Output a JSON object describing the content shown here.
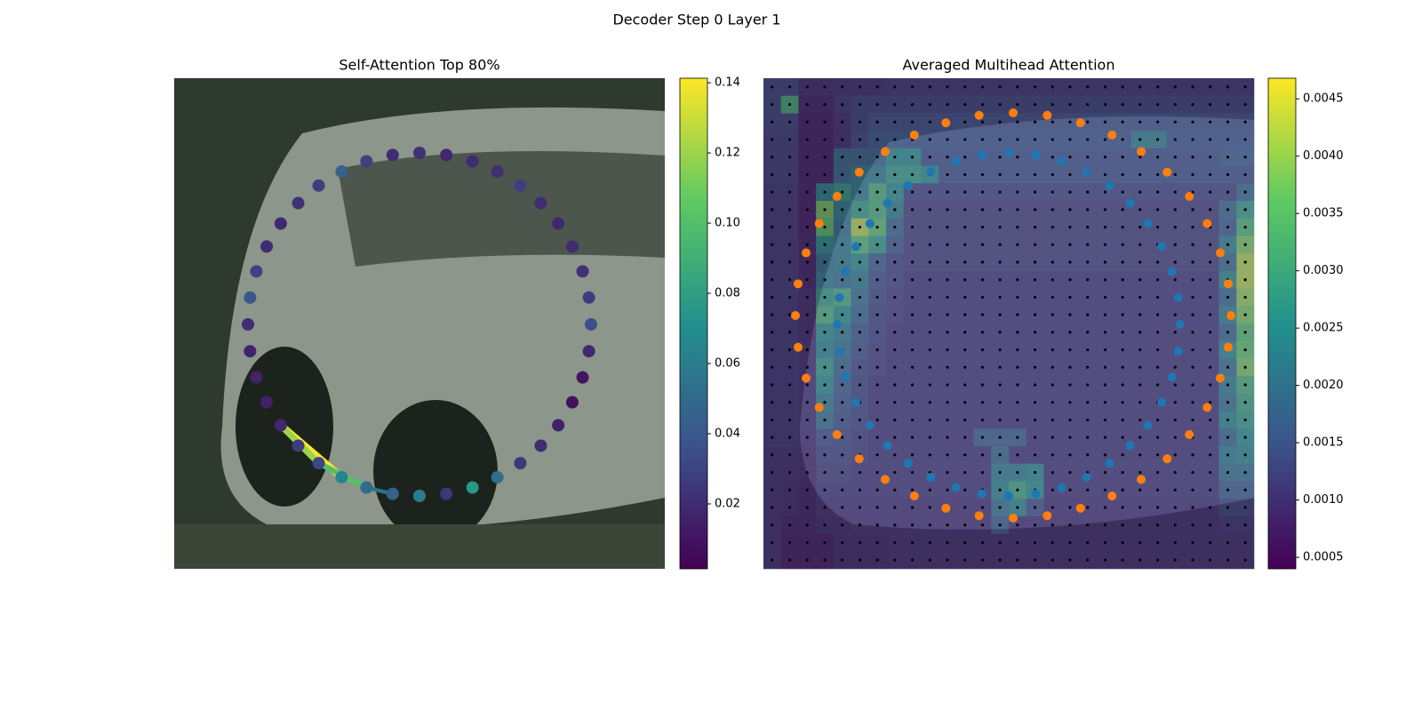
{
  "title": "Decoder Step 0 Layer 1",
  "chart_data": [
    {
      "type": "scatter",
      "title": "Self-Attention Top 80%",
      "cmap": "viridis",
      "values": [
        0.018,
        0.015,
        0.016,
        0.017,
        0.02,
        0.04,
        0.03,
        0.02,
        0.018,
        0.022,
        0.028,
        0.045,
        0.03,
        0.02,
        0.022,
        0.018,
        0.02,
        0.022,
        0.028,
        0.02,
        0.018,
        0.02,
        0.022,
        0.028,
        0.035,
        0.018,
        0.01,
        0.008,
        0.015,
        0.02,
        0.025,
        0.052,
        0.075,
        0.025,
        0.06,
        0.045,
        0.05,
        0.065,
        0.032,
        0.028
      ],
      "links": [
        {
          "from": 0,
          "to": 37,
          "value": 0.141
        },
        {
          "from": 0,
          "to": 38,
          "value": 0.12
        },
        {
          "from": 38,
          "to": 36,
          "value": 0.1
        },
        {
          "from": 36,
          "to": 35,
          "value": 0.055
        }
      ],
      "colorbar": {
        "ylim": [
          0.0015,
          0.1413
        ],
        "yticks": [
          0.02,
          0.04,
          0.06,
          0.08,
          {
            "value": 0.1,
            "label": "0.10"
          },
          0.12,
          0.14
        ]
      }
    },
    {
      "type": "heatmap",
      "title": "Averaged Multihead Attention",
      "cmap": "viridis",
      "z": [
        [
          0.0012,
          0.0012,
          0.0008,
          0.0008,
          0.0009,
          0.0009,
          0.0009,
          0.001,
          0.001,
          0.001,
          0.001,
          0.001,
          0.001,
          0.001,
          0.001,
          0.001,
          0.001,
          0.001,
          0.001,
          0.001,
          0.001,
          0.001,
          0.001,
          0.001,
          0.001,
          0.001,
          0.001,
          0.001
        ],
        [
          0.0012,
          0.0032,
          0.0007,
          0.0007,
          0.001,
          0.0012,
          0.0012,
          0.0012,
          0.0012,
          0.0012,
          0.0012,
          0.0012,
          0.0012,
          0.0012,
          0.0012,
          0.0012,
          0.0012,
          0.0012,
          0.0012,
          0.0012,
          0.0012,
          0.0012,
          0.0012,
          0.0012,
          0.0012,
          0.0012,
          0.0012,
          0.0012
        ],
        [
          0.0012,
          0.0012,
          0.0006,
          0.0006,
          0.0009,
          0.0012,
          0.0014,
          0.0014,
          0.0014,
          0.0014,
          0.0014,
          0.0014,
          0.0014,
          0.0014,
          0.0014,
          0.0014,
          0.0014,
          0.0014,
          0.0014,
          0.0014,
          0.0014,
          0.0014,
          0.0014,
          0.0014,
          0.0014,
          0.0014,
          0.0014,
          0.0014
        ],
        [
          0.0011,
          0.0011,
          0.0006,
          0.0006,
          0.0009,
          0.0013,
          0.0016,
          0.0016,
          0.0015,
          0.0015,
          0.0015,
          0.0015,
          0.0015,
          0.0015,
          0.0015,
          0.0015,
          0.0015,
          0.0015,
          0.0015,
          0.0015,
          0.0015,
          0.0022,
          0.0022,
          0.0015,
          0.0015,
          0.0015,
          0.0015,
          0.0015
        ],
        [
          0.0011,
          0.0011,
          0.0006,
          0.0006,
          0.0018,
          0.0018,
          0.0018,
          0.0025,
          0.0025,
          0.0014,
          0.0014,
          0.0014,
          0.0014,
          0.0014,
          0.0014,
          0.0014,
          0.0014,
          0.0014,
          0.0014,
          0.0014,
          0.0014,
          0.0014,
          0.0014,
          0.0014,
          0.0014,
          0.0014,
          0.0016,
          0.0016
        ],
        [
          0.0011,
          0.0011,
          0.0006,
          0.0006,
          0.0018,
          0.0022,
          0.0022,
          0.0028,
          0.0028,
          0.0025,
          0.0014,
          0.0014,
          0.0014,
          0.0014,
          0.0014,
          0.0014,
          0.0014,
          0.0014,
          0.0014,
          0.0014,
          0.0014,
          0.0014,
          0.0014,
          0.0014,
          0.0014,
          0.0014,
          0.0014,
          0.0014
        ],
        [
          0.001,
          0.001,
          0.0006,
          0.0024,
          0.0028,
          0.0022,
          0.0032,
          0.0026,
          0.0012,
          0.0012,
          0.0012,
          0.0012,
          0.0012,
          0.0012,
          0.0012,
          0.0012,
          0.0012,
          0.0012,
          0.0012,
          0.0012,
          0.0012,
          0.0012,
          0.0012,
          0.0012,
          0.0012,
          0.0012,
          0.0012,
          0.0018
        ],
        [
          0.001,
          0.001,
          0.0006,
          0.0038,
          0.0022,
          0.0028,
          0.0032,
          0.0022,
          0.0011,
          0.0011,
          0.0011,
          0.0011,
          0.0011,
          0.0011,
          0.0011,
          0.0011,
          0.0011,
          0.0011,
          0.0011,
          0.0011,
          0.0011,
          0.0011,
          0.0011,
          0.0011,
          0.0011,
          0.0011,
          0.0018,
          0.0028
        ],
        [
          0.001,
          0.001,
          0.0006,
          0.0036,
          0.002,
          0.0042,
          0.0035,
          0.0018,
          0.0011,
          0.0011,
          0.0011,
          0.0011,
          0.0011,
          0.0011,
          0.0011,
          0.0011,
          0.0011,
          0.0011,
          0.0011,
          0.0011,
          0.0011,
          0.0011,
          0.0011,
          0.0011,
          0.0011,
          0.0011,
          0.0016,
          0.0033
        ],
        [
          0.001,
          0.001,
          0.0007,
          0.0026,
          0.0022,
          0.0034,
          0.0028,
          0.0015,
          0.0011,
          0.0011,
          0.0011,
          0.0011,
          0.0011,
          0.0011,
          0.0011,
          0.0011,
          0.0011,
          0.0011,
          0.0011,
          0.0011,
          0.0011,
          0.0011,
          0.0011,
          0.0011,
          0.0011,
          0.0011,
          0.0022,
          0.0038
        ],
        [
          0.001,
          0.001,
          0.0007,
          0.002,
          0.0022,
          0.0026,
          0.0016,
          0.0012,
          0.0011,
          0.0011,
          0.0011,
          0.0011,
          0.0011,
          0.0011,
          0.0011,
          0.0011,
          0.0011,
          0.0011,
          0.0011,
          0.0011,
          0.0011,
          0.0011,
          0.0011,
          0.0011,
          0.0011,
          0.0011,
          0.0018,
          0.0042
        ],
        [
          0.001,
          0.001,
          0.0007,
          0.0022,
          0.002,
          0.0022,
          0.0014,
          0.0012,
          0.001,
          0.001,
          0.001,
          0.001,
          0.001,
          0.001,
          0.001,
          0.001,
          0.001,
          0.001,
          0.001,
          0.001,
          0.001,
          0.001,
          0.001,
          0.001,
          0.001,
          0.001,
          0.0024,
          0.0042
        ],
        [
          0.001,
          0.001,
          0.0008,
          0.0028,
          0.0032,
          0.002,
          0.0013,
          0.0011,
          0.001,
          0.001,
          0.001,
          0.001,
          0.001,
          0.001,
          0.001,
          0.001,
          0.001,
          0.001,
          0.001,
          0.001,
          0.001,
          0.001,
          0.001,
          0.001,
          0.001,
          0.001,
          0.0018,
          0.004
        ],
        [
          0.001,
          0.001,
          0.0008,
          0.0032,
          0.0026,
          0.0018,
          0.0012,
          0.0011,
          0.001,
          0.001,
          0.001,
          0.001,
          0.001,
          0.001,
          0.001,
          0.001,
          0.001,
          0.001,
          0.001,
          0.001,
          0.001,
          0.001,
          0.001,
          0.001,
          0.001,
          0.001,
          0.0022,
          0.0038
        ],
        [
          0.001,
          0.001,
          0.0008,
          0.0026,
          0.0022,
          0.0015,
          0.0012,
          0.001,
          0.001,
          0.001,
          0.001,
          0.001,
          0.001,
          0.001,
          0.001,
          0.001,
          0.001,
          0.001,
          0.001,
          0.001,
          0.001,
          0.001,
          0.001,
          0.001,
          0.001,
          0.001,
          0.0018,
          0.0034
        ],
        [
          0.001,
          0.001,
          0.0009,
          0.0024,
          0.002,
          0.0014,
          0.0011,
          0.001,
          0.001,
          0.001,
          0.001,
          0.001,
          0.001,
          0.001,
          0.001,
          0.001,
          0.001,
          0.001,
          0.001,
          0.001,
          0.001,
          0.001,
          0.001,
          0.001,
          0.001,
          0.001,
          0.0024,
          0.0036
        ],
        [
          0.001,
          0.001,
          0.0009,
          0.0028,
          0.0018,
          0.0013,
          0.0011,
          0.001,
          0.001,
          0.001,
          0.001,
          0.001,
          0.001,
          0.001,
          0.001,
          0.001,
          0.001,
          0.001,
          0.001,
          0.001,
          0.001,
          0.001,
          0.001,
          0.001,
          0.001,
          0.001,
          0.002,
          0.0038
        ],
        [
          0.001,
          0.001,
          0.0009,
          0.0026,
          0.0016,
          0.0012,
          0.001,
          0.001,
          0.001,
          0.001,
          0.001,
          0.001,
          0.001,
          0.001,
          0.001,
          0.001,
          0.001,
          0.001,
          0.001,
          0.001,
          0.001,
          0.001,
          0.001,
          0.001,
          0.001,
          0.001,
          0.0022,
          0.0032
        ],
        [
          0.001,
          0.001,
          0.0009,
          0.0022,
          0.0015,
          0.0012,
          0.001,
          0.001,
          0.001,
          0.001,
          0.001,
          0.001,
          0.001,
          0.001,
          0.001,
          0.001,
          0.001,
          0.001,
          0.001,
          0.001,
          0.001,
          0.001,
          0.001,
          0.001,
          0.001,
          0.001,
          0.002,
          0.003
        ],
        [
          0.001,
          0.001,
          0.0009,
          0.002,
          0.0014,
          0.0012,
          0.001,
          0.001,
          0.001,
          0.001,
          0.001,
          0.001,
          0.001,
          0.001,
          0.001,
          0.001,
          0.001,
          0.001,
          0.001,
          0.001,
          0.001,
          0.001,
          0.001,
          0.001,
          0.001,
          0.001,
          0.0024,
          0.0028
        ],
        [
          0.001,
          0.001,
          0.0009,
          0.0014,
          0.0013,
          0.0011,
          0.001,
          0.001,
          0.001,
          0.001,
          0.001,
          0.001,
          0.0016,
          0.0016,
          0.0016,
          0.001,
          0.001,
          0.001,
          0.001,
          0.001,
          0.001,
          0.001,
          0.001,
          0.001,
          0.001,
          0.001,
          0.0018,
          0.0026
        ],
        [
          0.0009,
          0.0009,
          0.0008,
          0.0012,
          0.0012,
          0.0011,
          0.001,
          0.001,
          0.001,
          0.001,
          0.001,
          0.001,
          0.001,
          0.0018,
          0.001,
          0.001,
          0.001,
          0.001,
          0.001,
          0.001,
          0.001,
          0.001,
          0.001,
          0.001,
          0.001,
          0.001,
          0.0022,
          0.0024
        ],
        [
          0.0009,
          0.0009,
          0.0008,
          0.0011,
          0.0011,
          0.001,
          0.001,
          0.001,
          0.001,
          0.001,
          0.001,
          0.001,
          0.001,
          0.0022,
          0.0022,
          0.0024,
          0.001,
          0.001,
          0.001,
          0.001,
          0.001,
          0.001,
          0.001,
          0.001,
          0.001,
          0.001,
          0.002,
          0.002
        ],
        [
          0.0009,
          0.0008,
          0.0007,
          0.001,
          0.001,
          0.001,
          0.001,
          0.001,
          0.001,
          0.001,
          0.001,
          0.001,
          0.001,
          0.0024,
          0.003,
          0.0026,
          0.001,
          0.001,
          0.001,
          0.001,
          0.001,
          0.001,
          0.001,
          0.001,
          0.001,
          0.001,
          0.0016,
          0.0016
        ],
        [
          0.0009,
          0.0008,
          0.0007,
          0.0009,
          0.0009,
          0.0009,
          0.0009,
          0.0009,
          0.0009,
          0.0009,
          0.0009,
          0.0009,
          0.0009,
          0.002,
          0.0024,
          0.0014,
          0.0009,
          0.0009,
          0.0009,
          0.0009,
          0.0009,
          0.0009,
          0.0009,
          0.0009,
          0.0009,
          0.0009,
          0.0012,
          0.0012
        ],
        [
          0.0009,
          0.0007,
          0.0007,
          0.0008,
          0.0008,
          0.0009,
          0.0009,
          0.0009,
          0.0009,
          0.0009,
          0.0009,
          0.0009,
          0.0009,
          0.0016,
          0.0009,
          0.0009,
          0.0009,
          0.0009,
          0.0009,
          0.0009,
          0.0009,
          0.0009,
          0.0009,
          0.0009,
          0.0009,
          0.0009,
          0.001,
          0.001
        ],
        [
          0.0009,
          0.0006,
          0.0006,
          0.0006,
          0.0008,
          0.0008,
          0.0008,
          0.0009,
          0.0009,
          0.0009,
          0.0009,
          0.0009,
          0.0009,
          0.0009,
          0.0009,
          0.0009,
          0.0009,
          0.0009,
          0.0009,
          0.0009,
          0.0009,
          0.0009,
          0.0009,
          0.0009,
          0.0009,
          0.0009,
          0.0009,
          0.0009
        ],
        [
          0.0009,
          0.0006,
          0.0006,
          0.0006,
          0.0008,
          0.0008,
          0.0008,
          0.0009,
          0.0009,
          0.0009,
          0.0009,
          0.0009,
          0.0009,
          0.0009,
          0.0009,
          0.0009,
          0.0009,
          0.0009,
          0.0009,
          0.0009,
          0.0009,
          0.0009,
          0.0009,
          0.0009,
          0.0009,
          0.0009,
          0.0009,
          0.0009
        ]
      ],
      "colorbar": {
        "ylim": [
          0.0004,
          0.00468
        ],
        "yticks": [
          0.0005,
          {
            "value": 0.001,
            "label": "0.0010"
          },
          0.0015,
          {
            "value": 0.002,
            "label": "0.0020"
          },
          0.0025,
          {
            "value": 0.003,
            "label": "0.0030"
          },
          0.0035,
          {
            "value": 0.004,
            "label": "0.0040"
          },
          0.0045
        ]
      }
    }
  ]
}
